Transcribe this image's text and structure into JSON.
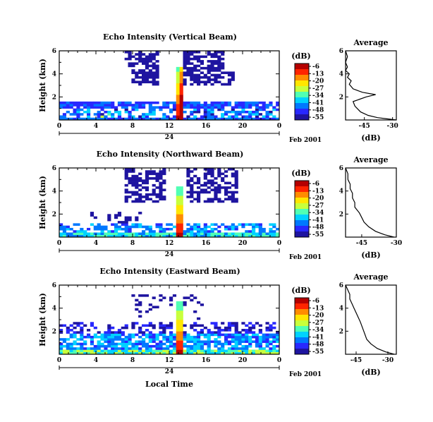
{
  "figure": {
    "date_label": "Feb 2001",
    "day_label": "24",
    "xlabel": "Local Time"
  },
  "colorscale": {
    "unit_label": "(dB)",
    "ticks": [
      "-6",
      "-13",
      "-20",
      "-27",
      "-34",
      "-41",
      "-48",
      "-55"
    ],
    "colors": [
      "#b50000",
      "#ff2400",
      "#ff8c00",
      "#ffe600",
      "#c8ff3c",
      "#50ffb4",
      "#00d2ff",
      "#0078ff",
      "#2828ff",
      "#1e14a0"
    ]
  },
  "chart_data": [
    {
      "type": "heatmap",
      "title": "Echo Intensity (Vertical Beam)",
      "ylabel": "Height (km)",
      "xlim": [
        0,
        24
      ],
      "ylim": [
        0,
        6
      ],
      "xticks": [
        "0",
        "4",
        "8",
        "12",
        "16",
        "20",
        "0"
      ],
      "yticks": [
        "2",
        "4",
        "6"
      ],
      "clim": [
        -55,
        -6
      ]
    },
    {
      "type": "heatmap",
      "title": "Echo Intensity (Northward Beam)",
      "ylabel": "Height (km)",
      "xlim": [
        0,
        24
      ],
      "ylim": [
        0,
        6
      ],
      "xticks": [
        "0",
        "4",
        "8",
        "12",
        "16",
        "20",
        "0"
      ],
      "yticks": [
        "2",
        "4",
        "6"
      ],
      "clim": [
        -55,
        -6
      ]
    },
    {
      "type": "heatmap",
      "title": "Echo Intensity (Eastward Beam)",
      "ylabel": "Height (km)",
      "xlim": [
        0,
        24
      ],
      "ylim": [
        0,
        6
      ],
      "xticks": [
        "0",
        "4",
        "8",
        "12",
        "16",
        "20",
        "0"
      ],
      "yticks": [
        "2",
        "4",
        "6"
      ],
      "clim": [
        -55,
        -6
      ]
    },
    {
      "type": "line",
      "title": "Average",
      "xlabel": "(dB)",
      "xlim": [
        -55,
        -28
      ],
      "ylim": [
        0,
        6
      ],
      "xticks": [
        "-45",
        "-30"
      ],
      "yticks": [
        "2",
        "4",
        "6"
      ],
      "profile": [
        {
          "dB": -28,
          "h": 0.0
        },
        {
          "dB": -33,
          "h": 0.1
        },
        {
          "dB": -38,
          "h": 0.2
        },
        {
          "dB": -43,
          "h": 0.4
        },
        {
          "dB": -47,
          "h": 0.7
        },
        {
          "dB": -50,
          "h": 1.2
        },
        {
          "dB": -51,
          "h": 1.6
        },
        {
          "dB": -44,
          "h": 2.0
        },
        {
          "dB": -39,
          "h": 2.2
        },
        {
          "dB": -46,
          "h": 2.4
        },
        {
          "dB": -51,
          "h": 2.7
        },
        {
          "dB": -53,
          "h": 3.1
        },
        {
          "dB": -52,
          "h": 3.4
        },
        {
          "dB": -54,
          "h": 3.7
        },
        {
          "dB": -53,
          "h": 4.0
        },
        {
          "dB": -55,
          "h": 4.3
        },
        {
          "dB": -54,
          "h": 4.6
        },
        {
          "dB": -55,
          "h": 5.0
        },
        {
          "dB": -54,
          "h": 5.5
        },
        {
          "dB": -55,
          "h": 6.0
        }
      ]
    },
    {
      "type": "line",
      "title": "Average",
      "xlabel": "(dB)",
      "xlim": [
        -52,
        -30
      ],
      "ylim": [
        0,
        6
      ],
      "xticks": [
        "-45",
        "-30"
      ],
      "yticks": [
        "2",
        "4",
        "6"
      ],
      "profile": [
        {
          "dB": -31,
          "h": 0.0
        },
        {
          "dB": -35,
          "h": 0.2
        },
        {
          "dB": -39,
          "h": 0.5
        },
        {
          "dB": -42,
          "h": 0.9
        },
        {
          "dB": -44,
          "h": 1.3
        },
        {
          "dB": -45,
          "h": 1.7
        },
        {
          "dB": -46,
          "h": 2.1
        },
        {
          "dB": -48,
          "h": 2.6
        },
        {
          "dB": -48,
          "h": 3.0
        },
        {
          "dB": -49,
          "h": 3.4
        },
        {
          "dB": -49,
          "h": 3.8
        },
        {
          "dB": -50,
          "h": 4.2
        },
        {
          "dB": -50,
          "h": 4.6
        },
        {
          "dB": -51,
          "h": 5.0
        },
        {
          "dB": -51,
          "h": 5.5
        },
        {
          "dB": -52,
          "h": 6.0
        }
      ]
    },
    {
      "type": "line",
      "title": "Average",
      "xlabel": "(dB)",
      "xlim": [
        -50,
        -26
      ],
      "ylim": [
        0,
        6
      ],
      "xticks": [
        "-45",
        "-30"
      ],
      "yticks": [
        "2",
        "4",
        "6"
      ],
      "profile": [
        {
          "dB": -27,
          "h": 0.0
        },
        {
          "dB": -31,
          "h": 0.2
        },
        {
          "dB": -35,
          "h": 0.5
        },
        {
          "dB": -38,
          "h": 0.9
        },
        {
          "dB": -40,
          "h": 1.3
        },
        {
          "dB": -41,
          "h": 1.8
        },
        {
          "dB": -42,
          "h": 2.3
        },
        {
          "dB": -43,
          "h": 2.8
        },
        {
          "dB": -44,
          "h": 3.2
        },
        {
          "dB": -45,
          "h": 3.6
        },
        {
          "dB": -46,
          "h": 4.0
        },
        {
          "dB": -47,
          "h": 4.4
        },
        {
          "dB": -48,
          "h": 4.8
        },
        {
          "dB": -48,
          "h": 5.2
        },
        {
          "dB": -49,
          "h": 5.6
        },
        {
          "dB": -50,
          "h": 6.0
        }
      ]
    }
  ]
}
